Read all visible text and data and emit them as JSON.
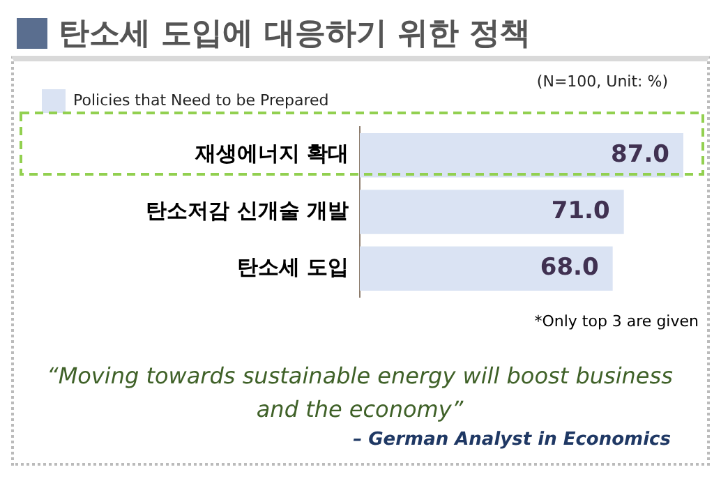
{
  "chart_data": {
    "type": "bar",
    "title": "탄소세 도입에 대응하기 위한 정책",
    "orientation": "horizontal",
    "categories": [
      "재생에너지 확대",
      "탄소저감 신개술 개발",
      "탄소세 도입"
    ],
    "series": [
      {
        "name": "Policies that Need to be Prepared",
        "color": "#dae3f3",
        "values": [
          87,
          71,
          68
        ],
        "value_labels": [
          "87.0",
          "71.0",
          "68.0"
        ]
      }
    ],
    "tick_labels": "y",
    "legend": "top left",
    "annotations": [
      "(N=100, Unit: %)",
      "*Only top 3 are given",
      "“Moving towards sustainable energy will boost business and the economy”",
      "– German Analyst in Economics"
    ]
  }
}
